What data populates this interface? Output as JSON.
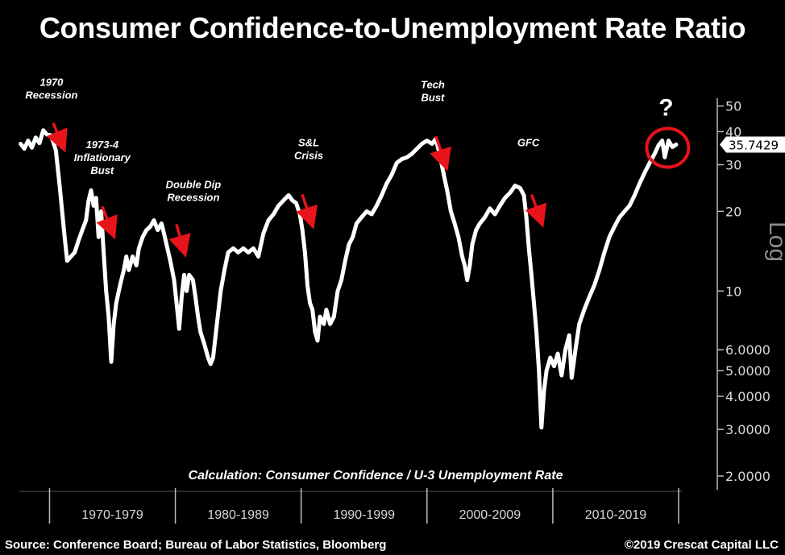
{
  "chart_data": {
    "type": "line",
    "title": "Consumer Confidence-to-Unemployment Rate Ratio",
    "subtitle": "Calculation: Consumer Confidence / U-3 Unemployment Rate",
    "ylabel": "Log",
    "y_scale": "log",
    "ylim": [
      1.8,
      55
    ],
    "xlim": [
      1967.6,
      2020.0
    ],
    "y_ticks": [
      {
        "value": 50,
        "label": "50"
      },
      {
        "value": 40,
        "label": "40"
      },
      {
        "value": 30,
        "label": "30"
      },
      {
        "value": 20,
        "label": "20"
      },
      {
        "value": 10,
        "label": "10"
      },
      {
        "value": 6,
        "label": "6.0000"
      },
      {
        "value": 5,
        "label": "5.0000"
      },
      {
        "value": 4,
        "label": "4.0000"
      },
      {
        "value": 3,
        "label": "3.0000"
      },
      {
        "value": 2,
        "label": "2.0000"
      }
    ],
    "x_groups": [
      {
        "label": "1970-1979",
        "start": 1970,
        "end": 1980
      },
      {
        "label": "1980-1989",
        "start": 1980,
        "end": 1990
      },
      {
        "label": "1990-1999",
        "start": 1990,
        "end": 2000
      },
      {
        "label": "2000-2009",
        "start": 2000,
        "end": 2010
      },
      {
        "label": "2010-2019",
        "start": 2010,
        "end": 2020
      }
    ],
    "last_value": {
      "value": 35.7429,
      "label": "35.7429"
    },
    "grid": false,
    "legend": "none",
    "series": [
      {
        "color": "#ffffff",
        "points": [
          [
            1967.7,
            36.0
          ],
          [
            1968.0,
            34.5
          ],
          [
            1968.3,
            37.0
          ],
          [
            1968.6,
            34.8
          ],
          [
            1968.9,
            38.0
          ],
          [
            1969.2,
            36.2
          ],
          [
            1969.5,
            40.5
          ],
          [
            1969.8,
            39.0
          ],
          [
            1970.1,
            38.8
          ],
          [
            1970.3,
            36.5
          ],
          [
            1970.5,
            34.0
          ],
          [
            1970.8,
            25.0
          ],
          [
            1971.0,
            20.0
          ],
          [
            1971.2,
            16.0
          ],
          [
            1971.4,
            13.0
          ],
          [
            1971.7,
            13.5
          ],
          [
            1972.0,
            14.0
          ],
          [
            1972.3,
            15.5
          ],
          [
            1972.6,
            17.0
          ],
          [
            1972.9,
            18.5
          ],
          [
            1973.1,
            22.0
          ],
          [
            1973.3,
            24.0
          ],
          [
            1973.5,
            21.0
          ],
          [
            1973.7,
            22.5
          ],
          [
            1973.9,
            16.0
          ],
          [
            1974.1,
            20.0
          ],
          [
            1974.3,
            14.0
          ],
          [
            1974.5,
            10.0
          ],
          [
            1974.7,
            8.0
          ],
          [
            1974.9,
            5.4
          ],
          [
            1975.1,
            7.5
          ],
          [
            1975.3,
            9.0
          ],
          [
            1975.6,
            10.5
          ],
          [
            1975.9,
            12.0
          ],
          [
            1976.1,
            13.5
          ],
          [
            1976.3,
            12.0
          ],
          [
            1976.6,
            13.5
          ],
          [
            1976.9,
            12.5
          ],
          [
            1977.1,
            14.5
          ],
          [
            1977.4,
            16.0
          ],
          [
            1977.7,
            17.0
          ],
          [
            1978.0,
            17.5
          ],
          [
            1978.3,
            18.5
          ],
          [
            1978.6,
            17.0
          ],
          [
            1978.9,
            18.0
          ],
          [
            1979.1,
            16.5
          ],
          [
            1979.3,
            15.0
          ],
          [
            1979.6,
            13.0
          ],
          [
            1979.9,
            11.0
          ],
          [
            1980.1,
            9.0
          ],
          [
            1980.3,
            7.2
          ],
          [
            1980.5,
            9.5
          ],
          [
            1980.7,
            11.5
          ],
          [
            1980.9,
            10.0
          ],
          [
            1981.1,
            11.5
          ],
          [
            1981.4,
            11.0
          ],
          [
            1981.6,
            9.5
          ],
          [
            1981.8,
            8.0
          ],
          [
            1982.0,
            7.0
          ],
          [
            1982.3,
            6.3
          ],
          [
            1982.6,
            5.6
          ],
          [
            1982.8,
            5.3
          ],
          [
            1983.0,
            5.6
          ],
          [
            1983.3,
            7.5
          ],
          [
            1983.6,
            10.0
          ],
          [
            1983.9,
            12.0
          ],
          [
            1984.2,
            14.0
          ],
          [
            1984.6,
            14.5
          ],
          [
            1985.0,
            14.0
          ],
          [
            1985.4,
            14.5
          ],
          [
            1985.8,
            14.0
          ],
          [
            1986.2,
            14.5
          ],
          [
            1986.6,
            13.5
          ],
          [
            1987.0,
            16.5
          ],
          [
            1987.4,
            18.5
          ],
          [
            1987.8,
            19.5
          ],
          [
            1988.2,
            21.0
          ],
          [
            1988.6,
            22.0
          ],
          [
            1989.0,
            23.0
          ],
          [
            1989.3,
            22.0
          ],
          [
            1989.6,
            21.5
          ],
          [
            1989.9,
            19.5
          ],
          [
            1990.1,
            17.0
          ],
          [
            1990.3,
            14.0
          ],
          [
            1990.5,
            10.5
          ],
          [
            1990.7,
            9.0
          ],
          [
            1990.9,
            8.5
          ],
          [
            1991.1,
            7.0
          ],
          [
            1991.3,
            6.5
          ],
          [
            1991.5,
            8.0
          ],
          [
            1991.8,
            7.5
          ],
          [
            1992.0,
            8.5
          ],
          [
            1992.3,
            7.5
          ],
          [
            1992.6,
            8.0
          ],
          [
            1992.9,
            10.0
          ],
          [
            1993.2,
            11.0
          ],
          [
            1993.5,
            13.0
          ],
          [
            1993.8,
            15.0
          ],
          [
            1994.1,
            16.0
          ],
          [
            1994.4,
            18.0
          ],
          [
            1994.8,
            19.0
          ],
          [
            1995.2,
            20.0
          ],
          [
            1995.6,
            19.5
          ],
          [
            1996.0,
            21.0
          ],
          [
            1996.4,
            23.0
          ],
          [
            1996.8,
            25.5
          ],
          [
            1997.2,
            27.5
          ],
          [
            1997.6,
            30.5
          ],
          [
            1998.0,
            31.5
          ],
          [
            1998.4,
            32.0
          ],
          [
            1998.8,
            33.0
          ],
          [
            1999.2,
            34.5
          ],
          [
            1999.6,
            36.0
          ],
          [
            2000.0,
            37.0
          ],
          [
            2000.4,
            36.0
          ],
          [
            2000.7,
            37.5
          ],
          [
            2001.0,
            33.0
          ],
          [
            2001.3,
            28.0
          ],
          [
            2001.6,
            24.0
          ],
          [
            2001.9,
            20.0
          ],
          [
            2002.2,
            18.0
          ],
          [
            2002.5,
            16.0
          ],
          [
            2002.8,
            13.5
          ],
          [
            2003.0,
            12.5
          ],
          [
            2003.2,
            11.0
          ],
          [
            2003.4,
            12.5
          ],
          [
            2003.6,
            15.0
          ],
          [
            2003.9,
            17.0
          ],
          [
            2004.2,
            18.0
          ],
          [
            2004.6,
            19.0
          ],
          [
            2005.0,
            20.5
          ],
          [
            2005.4,
            19.5
          ],
          [
            2005.8,
            21.0
          ],
          [
            2006.2,
            22.5
          ],
          [
            2006.6,
            23.5
          ],
          [
            2007.0,
            25.0
          ],
          [
            2007.4,
            24.5
          ],
          [
            2007.7,
            23.0
          ],
          [
            2007.9,
            19.0
          ],
          [
            2008.1,
            14.5
          ],
          [
            2008.3,
            11.5
          ],
          [
            2008.5,
            9.0
          ],
          [
            2008.7,
            7.0
          ],
          [
            2008.9,
            5.0
          ],
          [
            2009.1,
            3.05
          ],
          [
            2009.3,
            4.2
          ],
          [
            2009.5,
            5.0
          ],
          [
            2009.8,
            5.6
          ],
          [
            2010.1,
            5.2
          ],
          [
            2010.4,
            5.8
          ],
          [
            2010.7,
            4.8
          ],
          [
            2011.0,
            6.0
          ],
          [
            2011.3,
            6.8
          ],
          [
            2011.5,
            4.7
          ],
          [
            2011.8,
            6.0
          ],
          [
            2012.1,
            7.5
          ],
          [
            2012.5,
            8.5
          ],
          [
            2012.9,
            9.5
          ],
          [
            2013.3,
            10.5
          ],
          [
            2013.7,
            12.0
          ],
          [
            2014.1,
            14.0
          ],
          [
            2014.5,
            16.0
          ],
          [
            2014.9,
            17.5
          ],
          [
            2015.3,
            19.0
          ],
          [
            2015.7,
            20.0
          ],
          [
            2016.1,
            21.0
          ],
          [
            2016.5,
            23.0
          ],
          [
            2016.9,
            25.5
          ],
          [
            2017.3,
            28.0
          ],
          [
            2017.7,
            30.5
          ],
          [
            2018.1,
            33.0
          ],
          [
            2018.4,
            35.5
          ],
          [
            2018.7,
            37.0
          ],
          [
            2018.9,
            32.0
          ],
          [
            2019.2,
            37.0
          ],
          [
            2019.5,
            35.0
          ],
          [
            2019.8,
            35.7429
          ]
        ]
      }
    ],
    "annotations": [
      {
        "text": [
          "1970",
          "Recession"
        ],
        "x": 1970.8,
        "y": 34.0
      },
      {
        "text": [
          "1973-4",
          "Inflationary",
          "Bust"
        ],
        "x": 1974.7,
        "y": 16.0
      },
      {
        "text": [
          "Double Dip",
          "Recession"
        ],
        "x": 1980.6,
        "y": 13.5
      },
      {
        "text": [
          "S&L",
          "Crisis"
        ],
        "x": 1990.6,
        "y": 17.5
      },
      {
        "text": [
          "Tech",
          "Bust"
        ],
        "x": 2001.1,
        "y": 29.0
      },
      {
        "text": [
          "GFC"
        ],
        "x": 2008.7,
        "y": 17.5
      },
      {
        "text": [
          "?"
        ],
        "x": 2019.0,
        "y": 48.0
      }
    ],
    "highlight": {
      "x": 2019.0,
      "y": 35.5,
      "color": "#e8141a"
    },
    "arrow_color": "#e8141a"
  },
  "footer": {
    "source": "Source: Conference Board; Bureau of Labor Statistics, Bloomberg",
    "copyright": "©2019 Crescat Capital LLC"
  }
}
